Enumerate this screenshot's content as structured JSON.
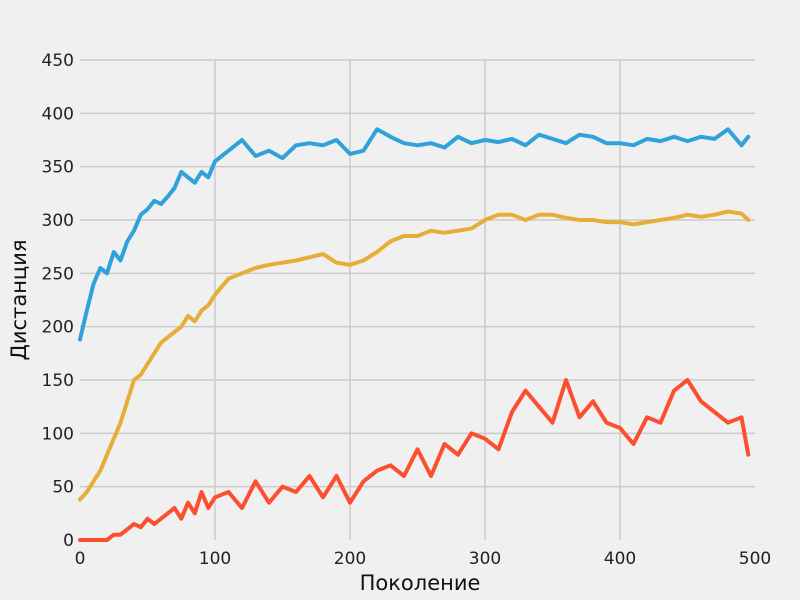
{
  "chart_data": {
    "type": "line",
    "title": "",
    "xlabel": "Поколение",
    "ylabel": "Дистанция",
    "xlim": [
      0,
      500
    ],
    "ylim": [
      0,
      450
    ],
    "x_ticks": [
      0,
      100,
      200,
      300,
      400,
      500
    ],
    "y_ticks": [
      0,
      50,
      100,
      150,
      200,
      250,
      300,
      350,
      400,
      450
    ],
    "grid": true,
    "legend": "none",
    "x_points": [
      0,
      5,
      10,
      15,
      20,
      25,
      30,
      35,
      40,
      45,
      50,
      55,
      60,
      65,
      70,
      75,
      80,
      85,
      90,
      95,
      100,
      110,
      120,
      130,
      140,
      150,
      160,
      170,
      180,
      190,
      200,
      210,
      220,
      230,
      240,
      250,
      260,
      270,
      280,
      290,
      300,
      310,
      320,
      330,
      340,
      350,
      360,
      370,
      380,
      390,
      400,
      410,
      420,
      430,
      440,
      450,
      460,
      470,
      480,
      490,
      495
    ],
    "series": [
      {
        "color": "#30a2da",
        "values": [
          188,
          215,
          240,
          255,
          250,
          270,
          262,
          280,
          290,
          305,
          310,
          318,
          315,
          322,
          330,
          345,
          340,
          335,
          345,
          340,
          355,
          365,
          375,
          360,
          365,
          358,
          370,
          372,
          370,
          375,
          362,
          365,
          385,
          378,
          372,
          370,
          372,
          368,
          378,
          372,
          375,
          373,
          376,
          370,
          380,
          376,
          372,
          380,
          378,
          372,
          372,
          370,
          376,
          374,
          378,
          374,
          378,
          376,
          385,
          370,
          378
        ]
      },
      {
        "color": "#e5ae38",
        "values": [
          38,
          45,
          55,
          65,
          80,
          95,
          110,
          130,
          150,
          155,
          165,
          175,
          185,
          190,
          195,
          200,
          210,
          205,
          215,
          220,
          230,
          245,
          250,
          255,
          258,
          260,
          262,
          265,
          268,
          260,
          258,
          262,
          270,
          280,
          285,
          285,
          290,
          288,
          290,
          292,
          300,
          305,
          305,
          300,
          305,
          305,
          302,
          300,
          300,
          298,
          298,
          296,
          298,
          300,
          302,
          305,
          303,
          305,
          308,
          306,
          300
        ]
      },
      {
        "color": "#fc4f30",
        "values": [
          0,
          0,
          0,
          0,
          0,
          5,
          5,
          10,
          15,
          12,
          20,
          15,
          20,
          25,
          30,
          20,
          35,
          25,
          45,
          30,
          40,
          45,
          30,
          55,
          35,
          50,
          45,
          60,
          40,
          60,
          35,
          55,
          65,
          70,
          60,
          85,
          60,
          90,
          80,
          100,
          95,
          85,
          120,
          140,
          125,
          110,
          150,
          115,
          130,
          110,
          105,
          90,
          115,
          110,
          140,
          150,
          130,
          120,
          110,
          115,
          80
        ]
      }
    ]
  }
}
